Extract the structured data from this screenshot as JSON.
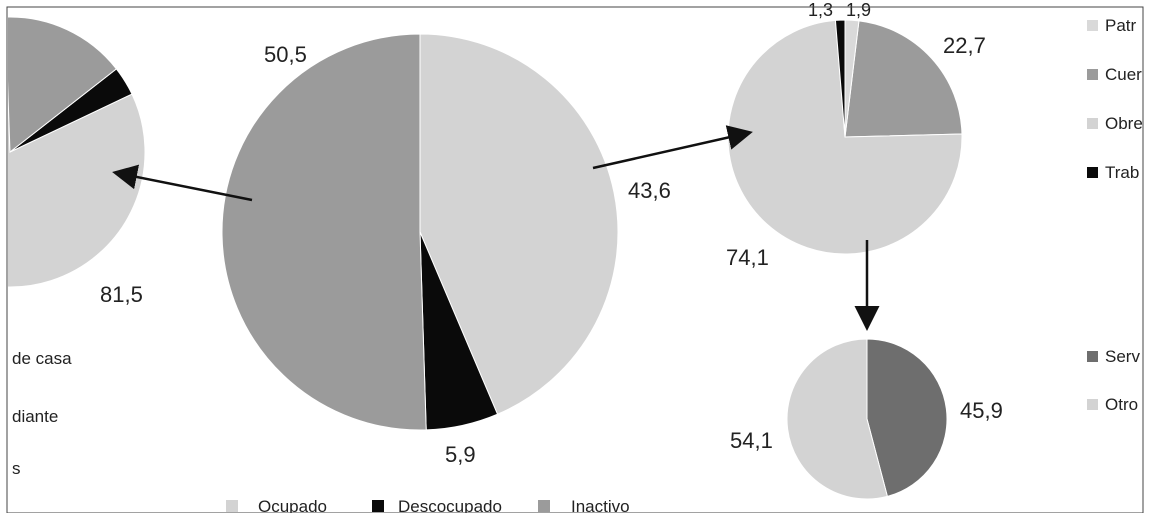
{
  "colors": {
    "ocupado": "#d3d3d3",
    "desocupado": "#0a0a0a",
    "inactivo": "#9b9b9b",
    "servicio": "#6e6e6e",
    "border": "#444444",
    "arrow": "#111111"
  },
  "legend_bottom": [
    {
      "label": "Ocupado",
      "color": "#d3d3d3"
    },
    {
      "label": "Descocupado",
      "color": "#0a0a0a"
    },
    {
      "label": "Inactivo",
      "color": "#9b9b9b"
    }
  ],
  "legend_left": [
    "de casa",
    "diante",
    "s"
  ],
  "legend_right_top": [
    {
      "label": "Patr",
      "color": "#d9d9d9"
    },
    {
      "label": "Cuer",
      "color": "#9b9b9b"
    },
    {
      "label": "Obre",
      "color": "#d3d3d3"
    },
    {
      "label": "Trab",
      "color": "#0a0a0a"
    }
  ],
  "legend_right_bottom": [
    {
      "label": "Serv",
      "color": "#6e6e6e"
    },
    {
      "label": "Otro",
      "color": "#d3d3d3"
    }
  ],
  "chart_data": [
    {
      "type": "pie",
      "title": "",
      "slices": [
        {
          "label": "Ocupado",
          "value": 43.6,
          "display": "43,6"
        },
        {
          "label": "Descocupado",
          "value": 5.9,
          "display": "5,9"
        },
        {
          "label": "Inactivo",
          "value": 50.5,
          "display": "50,5"
        }
      ]
    },
    {
      "type": "pie",
      "title": "",
      "note": "partially cropped",
      "slices": [
        {
          "label": "",
          "value": 81.5,
          "display": "81,5"
        },
        {
          "label": "",
          "value": 3.5,
          "display": ""
        },
        {
          "label": "",
          "value": 15.0,
          "display": ""
        }
      ]
    },
    {
      "type": "pie",
      "title": "",
      "slices": [
        {
          "label": "Cuer",
          "value": 22.7,
          "display": "22,7"
        },
        {
          "label": "Obre",
          "value": 74.1,
          "display": "74,1"
        },
        {
          "label": "Trab",
          "value": 1.3,
          "display": "1,3"
        },
        {
          "label": "Patr",
          "value": 1.9,
          "display": "1,9"
        }
      ]
    },
    {
      "type": "pie",
      "title": "",
      "slices": [
        {
          "label": "Serv",
          "value": 45.9,
          "display": "45,9"
        },
        {
          "label": "Otro",
          "value": 54.1,
          "display": "54,1"
        }
      ]
    }
  ]
}
